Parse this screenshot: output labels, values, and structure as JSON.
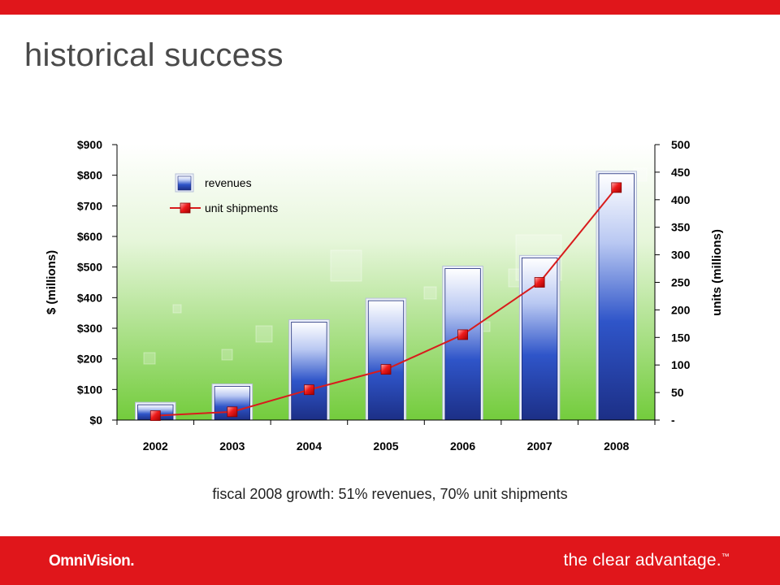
{
  "slide": {
    "title": "historical success",
    "caption": "fiscal 2008 growth:  51% revenues, 70% unit shipments"
  },
  "footer": {
    "logo_text": "OmniVision.",
    "tagline": "the clear advantage.",
    "tagline_mark": "™"
  },
  "colors": {
    "brand_red": "#e0161b",
    "bar_blue": "#1f3fa8",
    "line_red": "#e0161b",
    "background_green": "#7fd24a"
  },
  "chart_data": {
    "type": "bar",
    "categories": [
      "2002",
      "2003",
      "2004",
      "2005",
      "2006",
      "2007",
      "2008"
    ],
    "series": [
      {
        "name": "revenues",
        "type": "bar",
        "axis": "left",
        "values": [
          50,
          110,
          320,
          390,
          495,
          530,
          805
        ]
      },
      {
        "name": "unit shipments",
        "type": "line",
        "axis": "right",
        "values": [
          8,
          15,
          55,
          92,
          155,
          250,
          422
        ]
      }
    ],
    "ylabel": "$ (millions)",
    "y2label": "units (millions)",
    "ylim": [
      0,
      900
    ],
    "y2lim": [
      0,
      500
    ],
    "yticks": [
      0,
      100,
      200,
      300,
      400,
      500,
      600,
      700,
      800,
      900
    ],
    "ytick_labels": [
      "$0",
      "$100",
      "$200",
      "$300",
      "$400",
      "$500",
      "$600",
      "$700",
      "$800",
      "$900"
    ],
    "y2ticks": [
      0,
      50,
      100,
      150,
      200,
      250,
      300,
      350,
      400,
      450,
      500
    ],
    "y2tick_labels": [
      "-",
      "50",
      "100",
      "150",
      "200",
      "250",
      "300",
      "350",
      "400",
      "450",
      "500"
    ],
    "legend": [
      "revenues",
      "unit shipments"
    ],
    "legend_position": "top-left",
    "grid": false
  }
}
